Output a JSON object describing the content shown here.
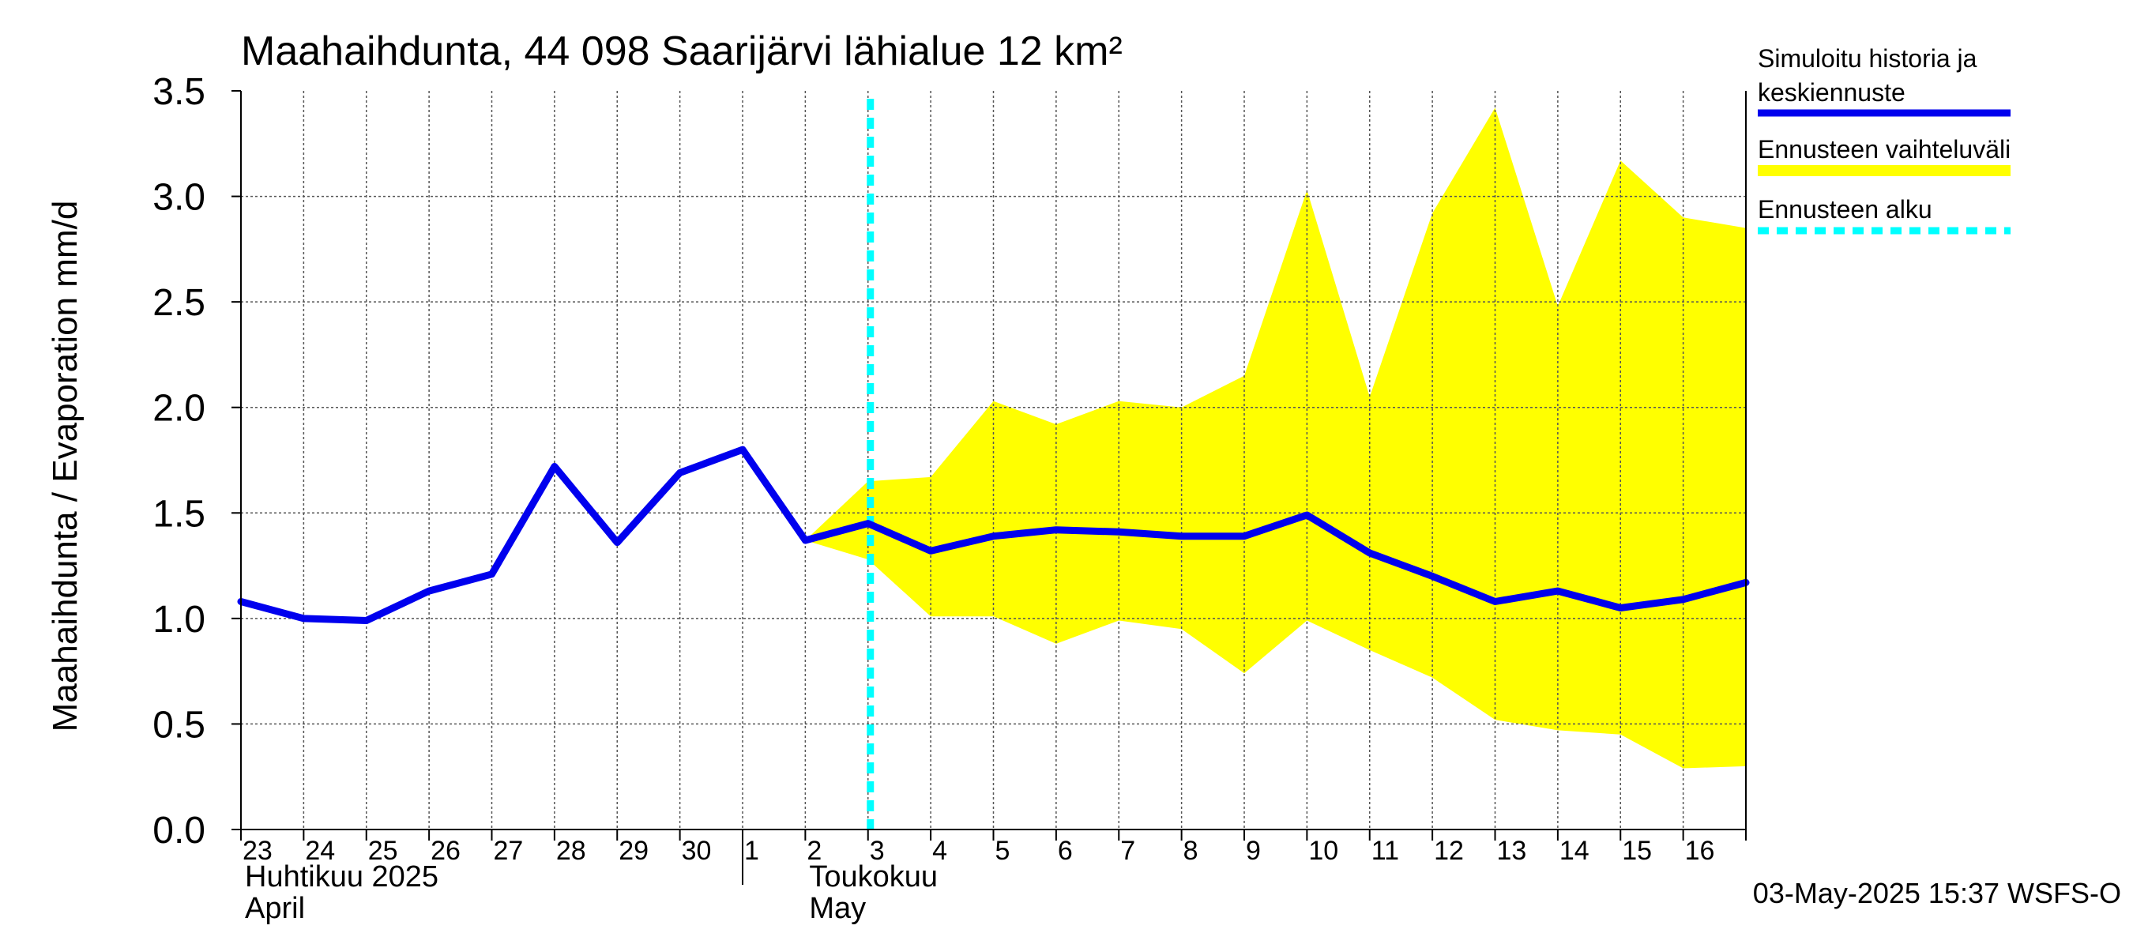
{
  "chart_data": {
    "type": "line",
    "title": "Maahaihdunta, 44 098 Saarijärvi lähialue 12 km²",
    "ylabel": "Maahaihdunta / Evaporation   mm/d",
    "ylim": [
      0,
      3.5
    ],
    "yticks": [
      "0.0",
      "0.5",
      "1.0",
      "1.5",
      "2.0",
      "2.5",
      "3.0",
      "3.5"
    ],
    "xlim": [
      "2025-04-23",
      "2025-05-17"
    ],
    "xticks": [
      "23",
      "24",
      "25",
      "26",
      "27",
      "28",
      "29",
      "30",
      "1",
      "2",
      "3",
      "4",
      "5",
      "6",
      "7",
      "8",
      "9",
      "10",
      "11",
      "12",
      "13",
      "14",
      "15",
      "16"
    ],
    "month_labels": [
      {
        "fi": "Huhtikuu  2025",
        "en": "April"
      },
      {
        "fi": "Toukokuu",
        "en": "May"
      }
    ],
    "grid": true,
    "forecast_start": "2025-05-03",
    "series": [
      {
        "name": "Simuloitu historia ja keskiennuste",
        "color": "#0000ee",
        "points": [
          [
            "2025-04-23",
            1.08
          ],
          [
            "2025-04-24",
            1.0
          ],
          [
            "2025-04-25",
            0.99
          ],
          [
            "2025-04-26",
            1.13
          ],
          [
            "2025-04-27",
            1.21
          ],
          [
            "2025-04-28",
            1.72
          ],
          [
            "2025-04-29",
            1.36
          ],
          [
            "2025-04-30",
            1.69
          ],
          [
            "2025-05-01",
            1.8
          ],
          [
            "2025-05-02",
            1.37
          ],
          [
            "2025-05-03",
            1.45
          ],
          [
            "2025-05-04",
            1.32
          ],
          [
            "2025-05-05",
            1.39
          ],
          [
            "2025-05-06",
            1.42
          ],
          [
            "2025-05-07",
            1.41
          ],
          [
            "2025-05-08",
            1.39
          ],
          [
            "2025-05-09",
            1.39
          ],
          [
            "2025-05-10",
            1.49
          ],
          [
            "2025-05-11",
            1.31
          ],
          [
            "2025-05-12",
            1.2
          ],
          [
            "2025-05-13",
            1.08
          ],
          [
            "2025-05-14",
            1.13
          ],
          [
            "2025-05-15",
            1.05
          ],
          [
            "2025-05-16",
            1.09
          ],
          [
            "2025-05-17",
            1.17
          ]
        ]
      },
      {
        "name": "Ennusteen vaihteluväli",
        "color": "#ffff00",
        "upper": [
          [
            "2025-05-02",
            1.37
          ],
          [
            "2025-05-03",
            1.65
          ],
          [
            "2025-05-04",
            1.67
          ],
          [
            "2025-05-05",
            2.03
          ],
          [
            "2025-05-06",
            1.92
          ],
          [
            "2025-05-07",
            2.03
          ],
          [
            "2025-05-08",
            2.0
          ],
          [
            "2025-05-09",
            2.15
          ],
          [
            "2025-05-10",
            3.03
          ],
          [
            "2025-05-11",
            2.05
          ],
          [
            "2025-05-12",
            2.92
          ],
          [
            "2025-05-13",
            3.42
          ],
          [
            "2025-05-14",
            2.48
          ],
          [
            "2025-05-15",
            3.17
          ],
          [
            "2025-05-16",
            2.9
          ],
          [
            "2025-05-17",
            2.85
          ]
        ],
        "lower": [
          [
            "2025-05-02",
            1.37
          ],
          [
            "2025-05-03",
            1.28
          ],
          [
            "2025-05-04",
            1.01
          ],
          [
            "2025-05-05",
            1.01
          ],
          [
            "2025-05-06",
            0.88
          ],
          [
            "2025-05-07",
            0.99
          ],
          [
            "2025-05-08",
            0.95
          ],
          [
            "2025-05-09",
            0.74
          ],
          [
            "2025-05-10",
            0.99
          ],
          [
            "2025-05-11",
            0.85
          ],
          [
            "2025-05-12",
            0.72
          ],
          [
            "2025-05-13",
            0.52
          ],
          [
            "2025-05-14",
            0.47
          ],
          [
            "2025-05-15",
            0.45
          ],
          [
            "2025-05-16",
            0.29
          ],
          [
            "2025-05-17",
            0.3
          ]
        ]
      },
      {
        "name": "Ennusteen alku",
        "color": "#00ffff"
      }
    ],
    "legend": [
      "Simuloitu historia ja\nkeskiennuste",
      "Ennusteen vaihteluväli",
      "Ennusteen alku"
    ],
    "legend_position": "right",
    "timestamp": "03-May-2025 15:37 WSFS-O"
  }
}
